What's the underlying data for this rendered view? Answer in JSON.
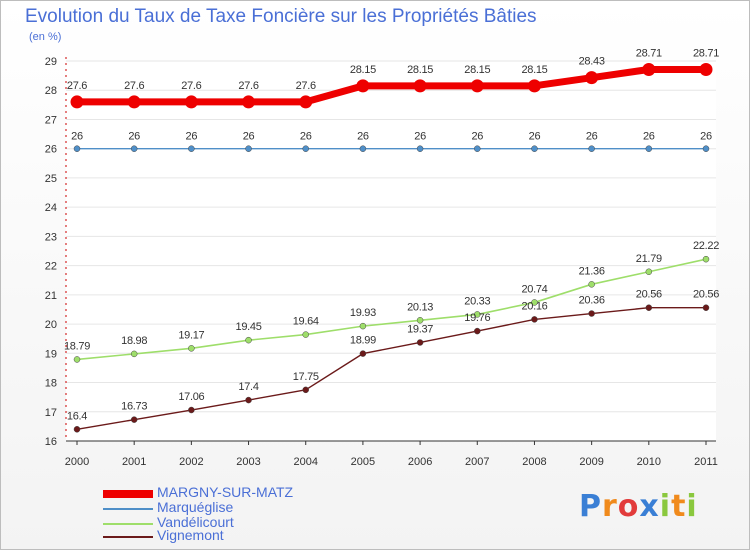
{
  "chart_data": {
    "type": "line",
    "title": "Evolution du Taux de Taxe Foncière sur les Propriétés Bâties",
    "ylabel": "(en %)",
    "xlabel": "",
    "ylim": [
      16,
      29
    ],
    "yticks": [
      "16",
      "17",
      "18",
      "19",
      "20",
      "21",
      "22",
      "23",
      "24",
      "25",
      "26",
      "27",
      "28",
      "29"
    ],
    "categories": [
      "2000",
      "2001",
      "2002",
      "2003",
      "2004",
      "2005",
      "2006",
      "2007",
      "2008",
      "2009",
      "2010",
      "2011"
    ],
    "series": [
      {
        "name": "MARGNY-SUR-MATZ",
        "color": "#ee0000",
        "values": [
          27.6,
          27.6,
          27.6,
          27.6,
          27.6,
          28.15,
          28.15,
          28.15,
          28.15,
          28.43,
          28.71,
          28.71
        ],
        "labels": [
          "27.6",
          "27.6",
          "27.6",
          "27.6",
          "27.6",
          "28.15",
          "28.15",
          "28.15",
          "28.15",
          "28.43",
          "28.71",
          "28.71"
        ]
      },
      {
        "name": "Marquéglise",
        "color": "#4f8fc8",
        "values": [
          26,
          26,
          26,
          26,
          26,
          26,
          26,
          26,
          26,
          26,
          26,
          26
        ],
        "labels": [
          "26",
          "26",
          "26",
          "26",
          "26",
          "26",
          "26",
          "26",
          "26",
          "26",
          "26",
          "26"
        ]
      },
      {
        "name": "Vandélicourt",
        "color": "#9ede6a",
        "values": [
          18.79,
          18.98,
          19.17,
          19.45,
          19.64,
          19.93,
          20.13,
          20.33,
          20.74,
          21.36,
          21.79,
          22.22
        ],
        "labels": [
          "18.79",
          "18.98",
          "19.17",
          "19.45",
          "19.64",
          "19.93",
          "20.13",
          "20.33",
          "20.74",
          "21.36",
          "21.79",
          "22.22"
        ]
      },
      {
        "name": "Vignemont",
        "color": "#6b1a1a",
        "values": [
          16.4,
          16.73,
          17.06,
          17.4,
          17.75,
          18.99,
          19.37,
          19.76,
          20.16,
          20.36,
          20.56,
          20.56
        ],
        "labels": [
          "16.4",
          "16.73",
          "17.06",
          "17.4",
          "17.75",
          "18.99",
          "19.37",
          "19.76",
          "20.16",
          "20.36",
          "20.56",
          "20.56"
        ]
      }
    ]
  },
  "logo": {
    "letters": [
      "P",
      "r",
      "o",
      "x",
      "i",
      "t",
      "i"
    ],
    "colors": [
      "#3a7fd5",
      "#f08a1c",
      "#e23b3b",
      "#3a7fd5",
      "#8ac83e",
      "#f08a1c",
      "#8ac83e"
    ]
  }
}
